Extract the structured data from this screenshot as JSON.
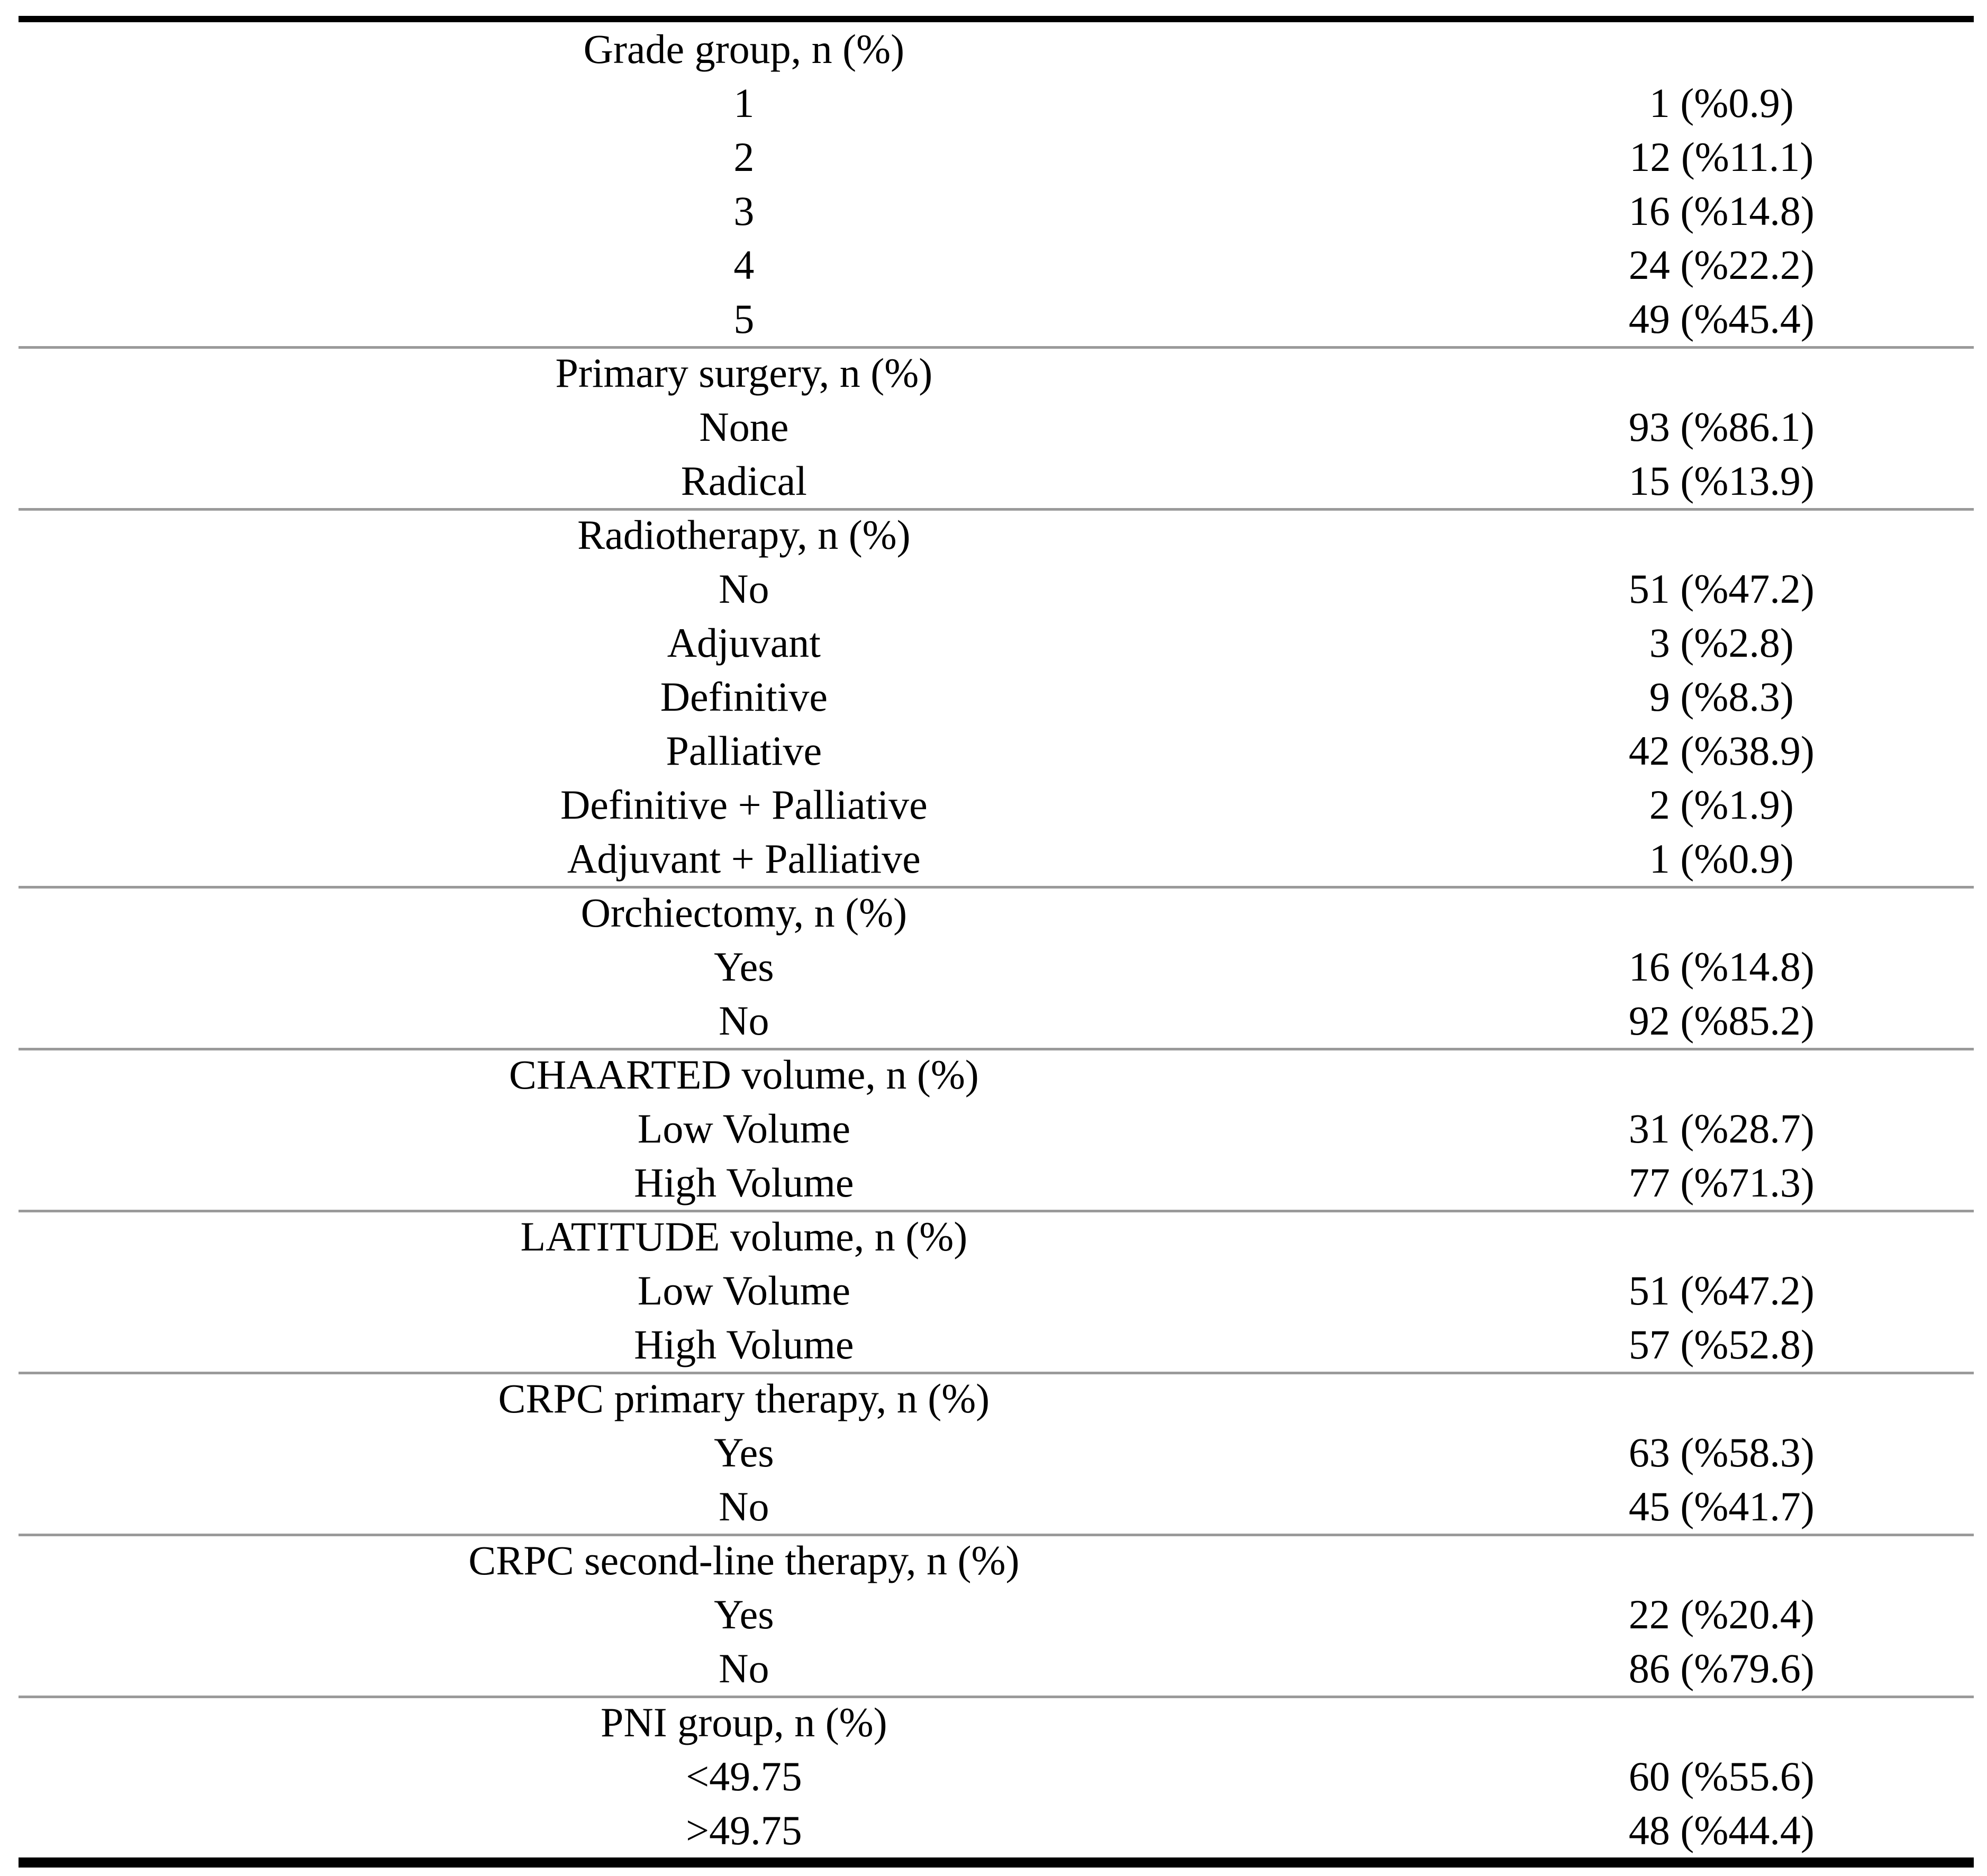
{
  "colors": {
    "rule_black": "#000000",
    "rule_gray": "#9a9a9a",
    "text": "#000000",
    "background": "#ffffff"
  },
  "table": {
    "sections": [
      {
        "header": "Grade group, n (%)",
        "rows": [
          {
            "label": "1",
            "value": "1 (%0.9)"
          },
          {
            "label": "2",
            "value": "12 (%11.1)"
          },
          {
            "label": "3",
            "value": "16 (%14.8)"
          },
          {
            "label": "4",
            "value": "24 (%22.2)"
          },
          {
            "label": "5",
            "value": "49 (%45.4)"
          }
        ]
      },
      {
        "header": "Primary surgery, n (%)",
        "rows": [
          {
            "label": "None",
            "value": "93 (%86.1)"
          },
          {
            "label": "Radical",
            "value": "15 (%13.9)"
          }
        ]
      },
      {
        "header": "Radiotherapy, n (%)",
        "rows": [
          {
            "label": "No",
            "value": "51 (%47.2)"
          },
          {
            "label": "Adjuvant",
            "value": "3 (%2.8)"
          },
          {
            "label": "Definitive",
            "value": "9 (%8.3)"
          },
          {
            "label": "Palliative",
            "value": "42 (%38.9)"
          },
          {
            "label": "Definitive + Palliative",
            "value": "2 (%1.9)"
          },
          {
            "label": "Adjuvant + Palliative",
            "value": "1 (%0.9)"
          }
        ]
      },
      {
        "header": "Orchiectomy, n (%)",
        "rows": [
          {
            "label": "Yes",
            "value": "16 (%14.8)"
          },
          {
            "label": "No",
            "value": "92 (%85.2)"
          }
        ]
      },
      {
        "header": "CHAARTED volume, n (%)",
        "rows": [
          {
            "label": "Low Volume",
            "value": "31 (%28.7)"
          },
          {
            "label": "High Volume",
            "value": "77 (%71.3)"
          }
        ]
      },
      {
        "header": "LATITUDE volume, n (%)",
        "rows": [
          {
            "label": "Low Volume",
            "value": "51 (%47.2)"
          },
          {
            "label": "High Volume",
            "value": "57 (%52.8)"
          }
        ]
      },
      {
        "header": "CRPC primary therapy, n (%)",
        "rows": [
          {
            "label": "Yes",
            "value": "63 (%58.3)"
          },
          {
            "label": "No",
            "value": "45 (%41.7)"
          }
        ]
      },
      {
        "header": "CRPC second-line therapy, n (%)",
        "rows": [
          {
            "label": "Yes",
            "value": "22 (%20.4)"
          },
          {
            "label": "No",
            "value": "86 (%79.6)"
          }
        ]
      },
      {
        "header": "PNI group, n (%)",
        "rows": [
          {
            "label": "<49.75",
            "value": "60 (%55.6)"
          },
          {
            "label": ">49.75",
            "value": "48 (%44.4)"
          }
        ]
      }
    ]
  }
}
